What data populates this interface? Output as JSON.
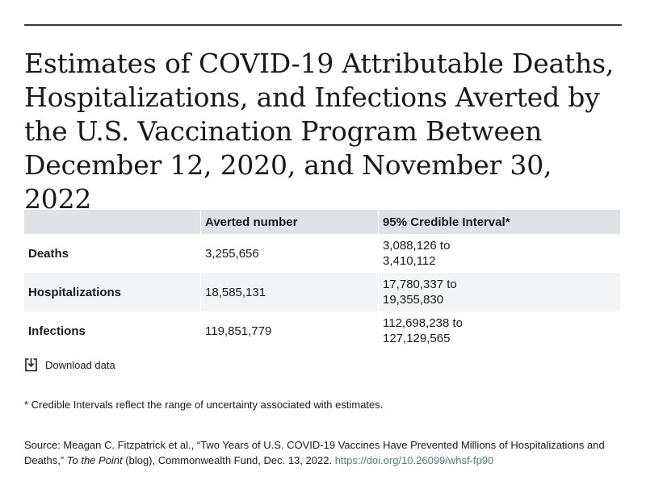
{
  "title": "Estimates of COVID-19 Attributable Deaths, Hospitalizations, and Infections Averted by the U.S. Vaccination Program Between December 12, 2020, and November 30, 2022",
  "chart_data": {
    "type": "table",
    "columns": [
      "",
      "Averted number",
      "95% Credible Interval*"
    ],
    "rows": [
      {
        "label": "Deaths",
        "averted": "3,255,656",
        "ci_low": "3,088,126 to",
        "ci_high": "3,410,112"
      },
      {
        "label": "Hospitalizations",
        "averted": "18,585,131",
        "ci_low": "17,780,337 to",
        "ci_high": "19,355,830"
      },
      {
        "label": "Infections",
        "averted": "119,851,779",
        "ci_low": "112,698,238 to",
        "ci_high": "127,129,565"
      }
    ]
  },
  "download": {
    "label": "Download data",
    "icon": "download-icon"
  },
  "footnote": "* Credible Intervals reflect the range of uncertainty associated with estimates.",
  "source": {
    "prefix": "Source: Meagan C. Fitzpatrick et al., “Two Years of U.S. COVID-19 Vaccines Have Prevented Millions of Hospitalizations and Deaths,” ",
    "publication": "To the Point",
    "suffix": " (blog), Commonwealth Fund, Dec. 13, 2022. ",
    "link": "https://doi.org/10.26099/whsf-fp90"
  },
  "colors": {
    "header_bg": "#dfe3e6",
    "stripe_bg": "#f3f4f5",
    "link": "#3b8a7a",
    "rule": "#3a3a3a"
  }
}
